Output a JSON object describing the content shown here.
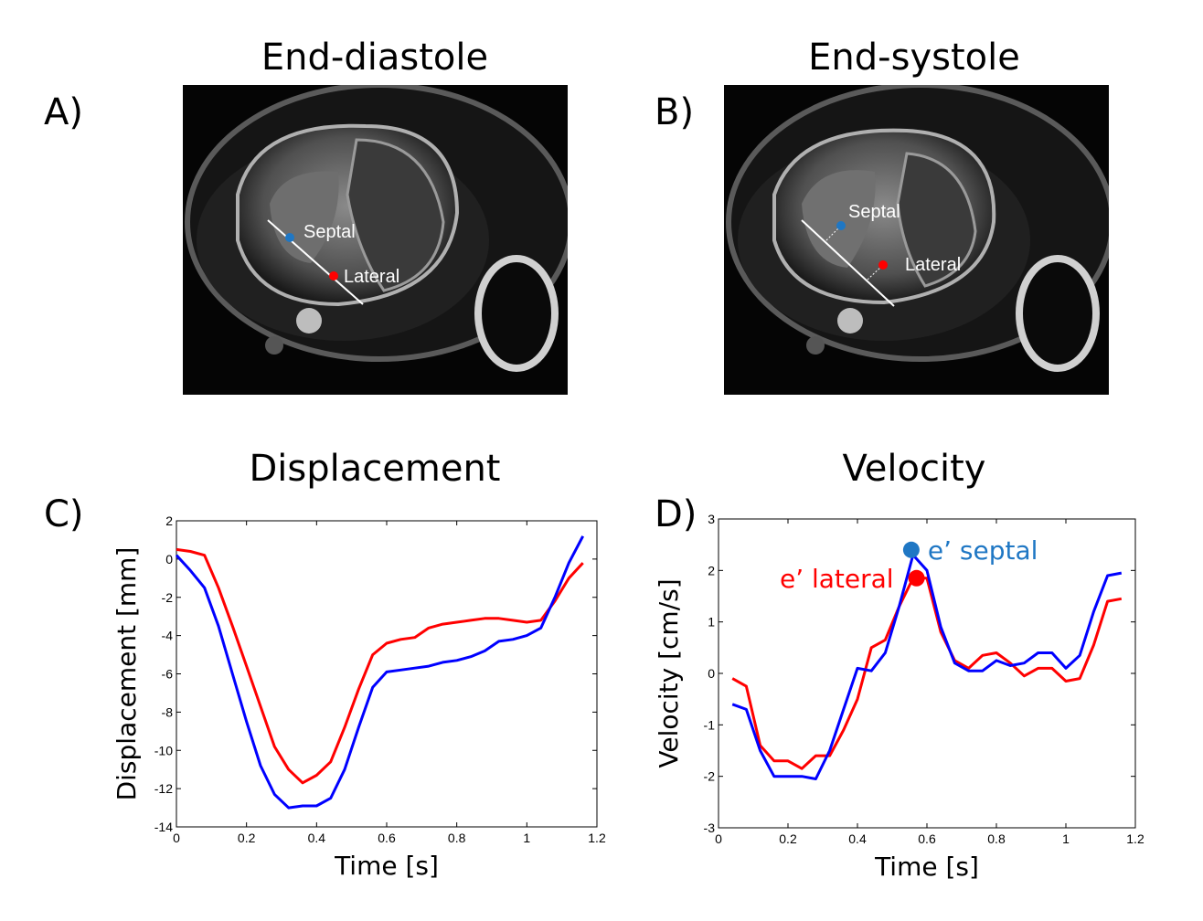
{
  "panels": {
    "a": {
      "letter": "A)",
      "title": "End-diastole",
      "labels": {
        "septal": "Septal",
        "lateral": "Lateral"
      }
    },
    "b": {
      "letter": "B)",
      "title": "End-systole",
      "labels": {
        "septal": "Septal",
        "lateral": "Lateral"
      }
    },
    "c": {
      "letter": "C)",
      "title": "Displacement"
    },
    "d": {
      "letter": "D)",
      "title": "Velocity"
    }
  },
  "colors": {
    "septal": "#1f77c4",
    "lateral": "#ff0000",
    "septal_line": "#0000ff"
  },
  "chart_data": [
    {
      "type": "line",
      "title": "Displacement",
      "xlabel": "Time [s]",
      "ylabel": "Displacement [mm]",
      "xlim": [
        0,
        1.2
      ],
      "ylim": [
        -14,
        2
      ],
      "xticks": [
        "0",
        "0.2",
        "0.4",
        "0.6",
        "0.8",
        "1",
        "1.2"
      ],
      "yticks": [
        "2",
        "0",
        "-2",
        "-4",
        "-6",
        "-8",
        "-10",
        "-12",
        "-14"
      ],
      "series": [
        {
          "name": "Lateral",
          "color": "#ff0000",
          "x": [
            0,
            0.04,
            0.08,
            0.12,
            0.16,
            0.2,
            0.24,
            0.28,
            0.32,
            0.36,
            0.4,
            0.44,
            0.48,
            0.52,
            0.56,
            0.6,
            0.64,
            0.68,
            0.72,
            0.76,
            0.8,
            0.84,
            0.88,
            0.92,
            0.96,
            1.0,
            1.04,
            1.08,
            1.12,
            1.16
          ],
          "y": [
            0.5,
            0.4,
            0.2,
            -1.5,
            -3.5,
            -5.6,
            -7.7,
            -9.8,
            -11.0,
            -11.7,
            -11.3,
            -10.6,
            -8.8,
            -6.8,
            -5.0,
            -4.4,
            -4.2,
            -4.1,
            -3.6,
            -3.4,
            -3.3,
            -3.2,
            -3.1,
            -3.1,
            -3.2,
            -3.3,
            -3.2,
            -2.2,
            -1.0,
            -0.2
          ]
        },
        {
          "name": "Septal",
          "color": "#0000ff",
          "x": [
            0,
            0.04,
            0.08,
            0.12,
            0.16,
            0.2,
            0.24,
            0.28,
            0.32,
            0.36,
            0.4,
            0.44,
            0.48,
            0.52,
            0.56,
            0.6,
            0.64,
            0.68,
            0.72,
            0.76,
            0.8,
            0.84,
            0.88,
            0.92,
            0.96,
            1.0,
            1.04,
            1.08,
            1.12,
            1.16
          ],
          "y": [
            0.2,
            -0.6,
            -1.5,
            -3.5,
            -6.0,
            -8.5,
            -10.8,
            -12.3,
            -13.0,
            -12.9,
            -12.9,
            -12.5,
            -11.0,
            -8.8,
            -6.7,
            -5.9,
            -5.8,
            -5.7,
            -5.6,
            -5.4,
            -5.3,
            -5.1,
            -4.8,
            -4.3,
            -4.2,
            -4.0,
            -3.6,
            -2.0,
            -0.2,
            1.2
          ]
        }
      ]
    },
    {
      "type": "line",
      "title": "Velocity",
      "xlabel": "Time [s]",
      "ylabel": "Velocity [cm/s]",
      "xlim": [
        0,
        1.2
      ],
      "ylim": [
        -3,
        3
      ],
      "xticks": [
        "0",
        "0.2",
        "0.4",
        "0.6",
        "0.8",
        "1",
        "1.2"
      ],
      "yticks": [
        "3",
        "2",
        "1",
        "0",
        "-1",
        "-2",
        "-3"
      ],
      "series": [
        {
          "name": "Lateral",
          "color": "#ff0000",
          "x": [
            0.04,
            0.08,
            0.12,
            0.16,
            0.2,
            0.24,
            0.28,
            0.32,
            0.36,
            0.4,
            0.44,
            0.48,
            0.52,
            0.56,
            0.6,
            0.64,
            0.68,
            0.72,
            0.76,
            0.8,
            0.84,
            0.88,
            0.92,
            0.96,
            1.0,
            1.04,
            1.08,
            1.12,
            1.16
          ],
          "y": [
            -0.1,
            -0.25,
            -1.4,
            -1.7,
            -1.7,
            -1.85,
            -1.6,
            -1.6,
            -1.1,
            -0.5,
            0.5,
            0.65,
            1.3,
            1.85,
            1.85,
            0.8,
            0.25,
            0.1,
            0.35,
            0.4,
            0.2,
            -0.05,
            0.1,
            0.1,
            -0.15,
            -0.1,
            0.55,
            1.4,
            1.45
          ]
        },
        {
          "name": "Septal",
          "color": "#0000ff",
          "x": [
            0.04,
            0.08,
            0.12,
            0.16,
            0.2,
            0.24,
            0.28,
            0.32,
            0.36,
            0.4,
            0.44,
            0.48,
            0.52,
            0.56,
            0.6,
            0.64,
            0.68,
            0.72,
            0.76,
            0.8,
            0.84,
            0.88,
            0.92,
            0.96,
            1.0,
            1.04,
            1.08,
            1.12,
            1.16
          ],
          "y": [
            -0.6,
            -0.7,
            -1.5,
            -2.0,
            -2.0,
            -2.0,
            -2.05,
            -1.5,
            -0.7,
            0.1,
            0.05,
            0.4,
            1.3,
            2.3,
            2.0,
            0.9,
            0.2,
            0.05,
            0.05,
            0.25,
            0.15,
            0.2,
            0.4,
            0.4,
            0.1,
            0.35,
            1.2,
            1.9,
            1.95
          ]
        }
      ],
      "markers": [
        {
          "name": "e' septal",
          "x": 0.555,
          "y": 2.4,
          "color": "#1f77c4"
        },
        {
          "name": "e' lateral",
          "x": 0.57,
          "y": 1.85,
          "color": "#ff0000"
        }
      ],
      "annotations": {
        "septal": "e’ septal",
        "lateral": "e’ lateral"
      }
    }
  ]
}
